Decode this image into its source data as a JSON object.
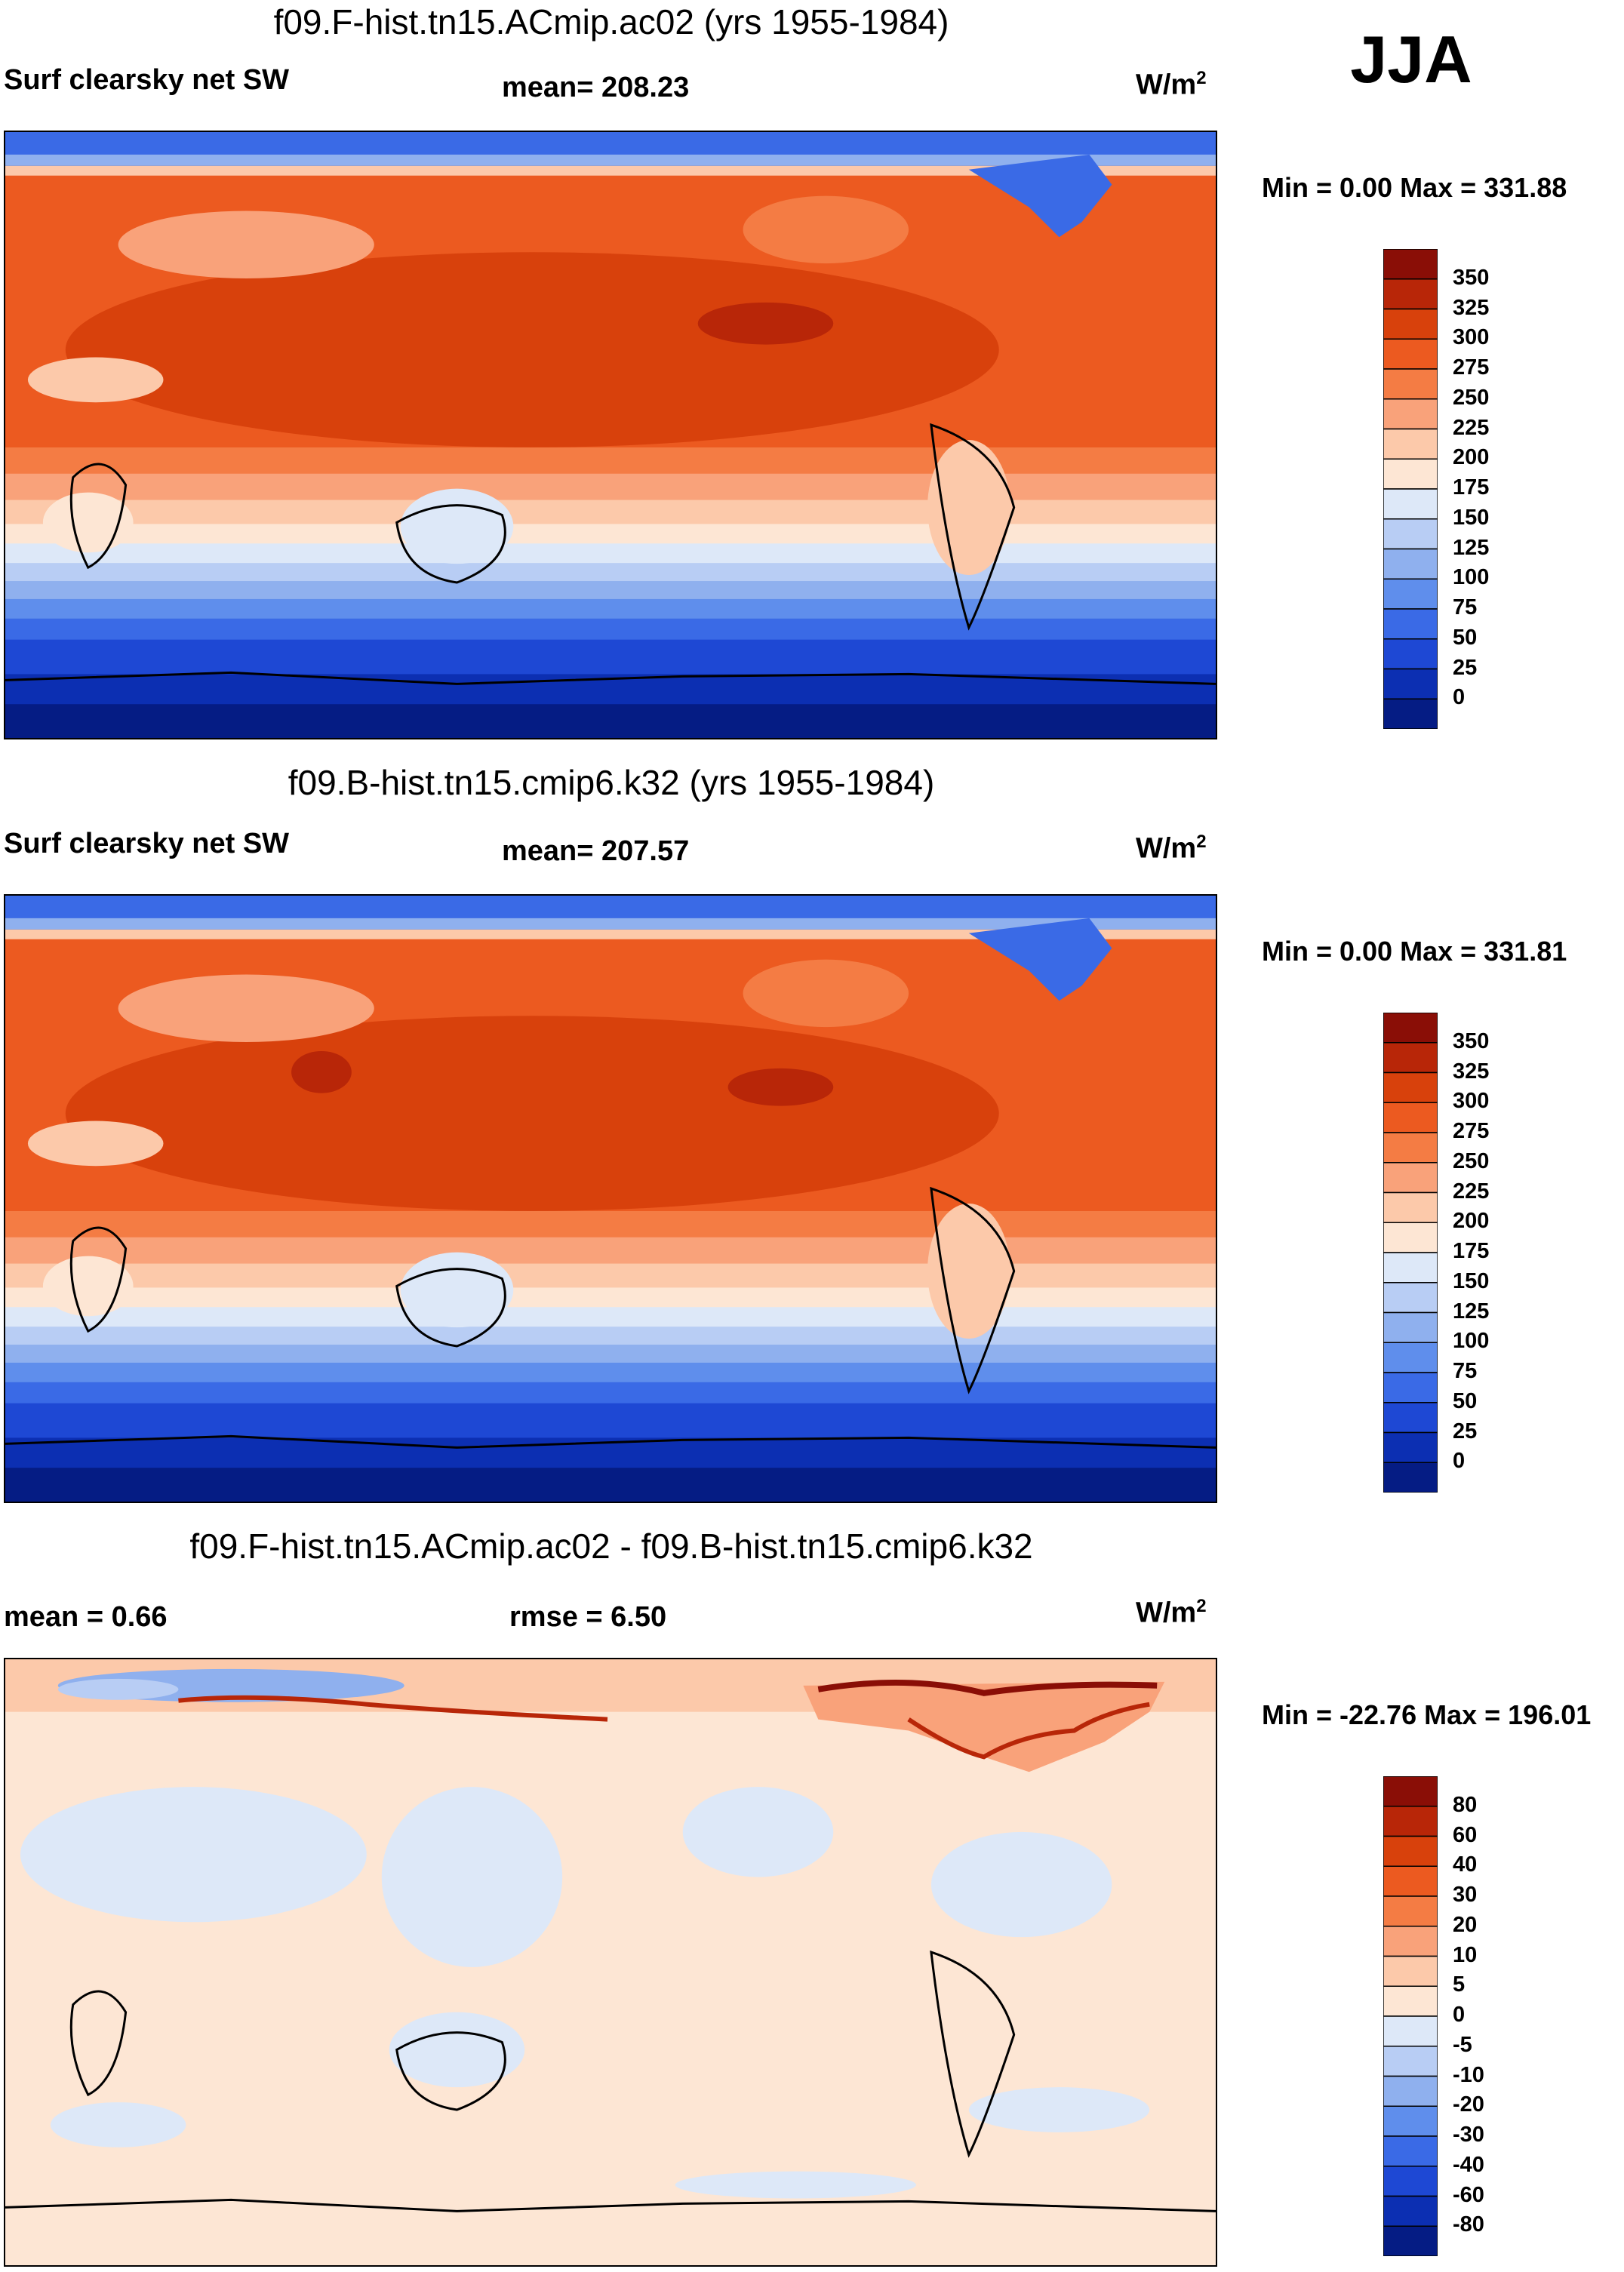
{
  "season": "JJA",
  "chart_data": [
    {
      "type": "heatmap",
      "title": "f09.F-hist.tn15.ACmip.ac02 (yrs 1955-1984)",
      "variable": "Surf clearsky net SW",
      "stat_label": "mean= 208.23",
      "units": "W/m",
      "units_exp": "2",
      "min_max": "Min =   0.00 Max = 331.88",
      "min": 0.0,
      "max": 331.88,
      "mean": 208.23,
      "colorbar": {
        "levels": [
          "350",
          "325",
          "300",
          "275",
          "250",
          "225",
          "200",
          "175",
          "150",
          "125",
          "100",
          "75",
          "50",
          "25",
          "0"
        ],
        "colors": [
          "#8a0e06",
          "#b82608",
          "#d8410c",
          "#ec5a20",
          "#f47c44",
          "#f9a27a",
          "#fcc9aa",
          "#fde6d4",
          "#dde8f8",
          "#b8cdf4",
          "#8fb0ee",
          "#5f8eec",
          "#3a6ae6",
          "#1e48d4",
          "#0c2fb2",
          "#051c84"
        ]
      }
    },
    {
      "type": "heatmap",
      "title": "f09.B-hist.tn15.cmip6.k32 (yrs 1955-1984)",
      "variable": "Surf clearsky net SW",
      "stat_label": "mean= 207.57",
      "units": "W/m",
      "units_exp": "2",
      "min_max": "Min =   0.00 Max = 331.81",
      "min": 0.0,
      "max": 331.81,
      "mean": 207.57,
      "colorbar": {
        "levels": [
          "350",
          "325",
          "300",
          "275",
          "250",
          "225",
          "200",
          "175",
          "150",
          "125",
          "100",
          "75",
          "50",
          "25",
          "0"
        ],
        "colors": [
          "#8a0e06",
          "#b82608",
          "#d8410c",
          "#ec5a20",
          "#f47c44",
          "#f9a27a",
          "#fcc9aa",
          "#fde6d4",
          "#dde8f8",
          "#b8cdf4",
          "#8fb0ee",
          "#5f8eec",
          "#3a6ae6",
          "#1e48d4",
          "#0c2fb2",
          "#051c84"
        ]
      }
    },
    {
      "type": "heatmap",
      "title": "f09.F-hist.tn15.ACmip.ac02 - f09.B-hist.tn15.cmip6.k32",
      "variable": "mean =   0.66",
      "stat_label": "rmse =   6.50",
      "units": "W/m",
      "units_exp": "2",
      "min_max": "Min = -22.76 Max = 196.01",
      "min": -22.76,
      "max": 196.01,
      "mean": 0.66,
      "rmse": 6.5,
      "colorbar": {
        "levels": [
          "80",
          "60",
          "40",
          "30",
          "20",
          "10",
          "5",
          "0",
          "-5",
          "-10",
          "-20",
          "-30",
          "-40",
          "-60",
          "-80"
        ],
        "colors": [
          "#8a0e06",
          "#b82608",
          "#d8410c",
          "#ec5a20",
          "#f47c44",
          "#f9a27a",
          "#fcc9aa",
          "#fde6d4",
          "#dde8f8",
          "#b8cdf4",
          "#8fb0ee",
          "#5f8eec",
          "#3a6ae6",
          "#1e48d4",
          "#0c2fb2",
          "#051c84"
        ]
      }
    }
  ]
}
